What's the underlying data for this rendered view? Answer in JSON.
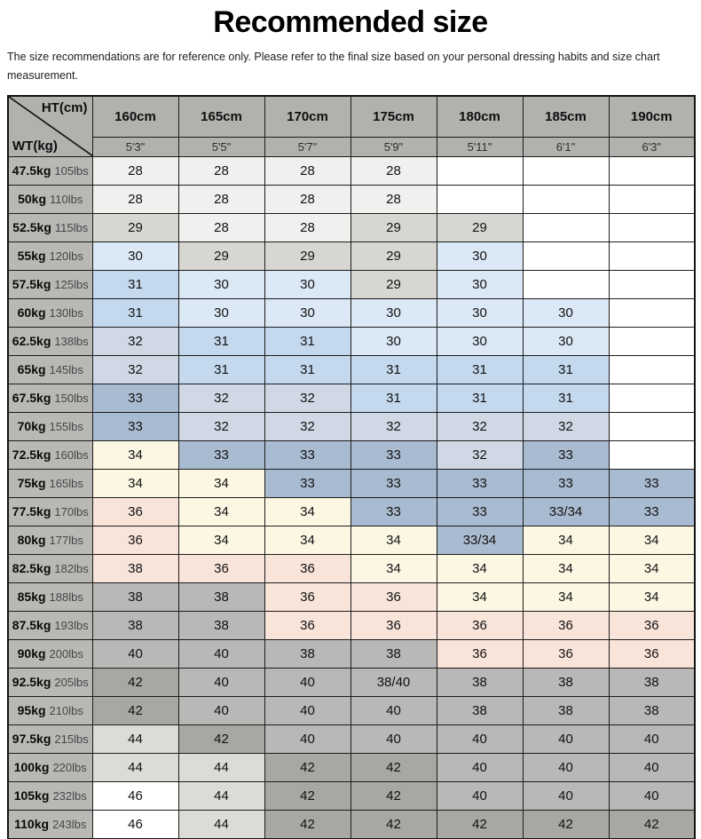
{
  "title": "Recommended size",
  "disclaimer": "The size recommendations are for reference only. Please refer to the final size based on your personal dressing habits and size chart measurement.",
  "corner": {
    "ht": "HT(cm)",
    "wt": "WT(kg)"
  },
  "palette": {
    "w": "#ffffff",
    "s28": "#f1f0ee",
    "s29": "#d7d6d1",
    "s30": "#dbe8f5",
    "s31": "#c4d9ee",
    "s32": "#cfd8e4",
    "s33": "#a9bbd0",
    "s34": "#fcf7e3",
    "s36": "#f9e4da",
    "s38": "#b9b8b6",
    "s42": "#a8a7a4",
    "s44": "#dcdbd8"
  },
  "chart_data": {
    "type": "table",
    "title": "Recommended size",
    "columns_cm": [
      "160cm",
      "165cm",
      "170cm",
      "175cm",
      "180cm",
      "185cm",
      "190cm"
    ],
    "columns_ft": [
      "5'3\"",
      "5'5\"",
      "5'7\"",
      "5'9\"",
      "5'11\"",
      "6'1\"",
      "6'3\""
    ],
    "rows": [
      {
        "kg": "47.5kg",
        "lbs": "105lbs",
        "cells": [
          {
            "v": "28",
            "c": "s28"
          },
          {
            "v": "28",
            "c": "s28"
          },
          {
            "v": "28",
            "c": "s28"
          },
          {
            "v": "28",
            "c": "s28"
          },
          {
            "v": "",
            "c": "w"
          },
          {
            "v": "",
            "c": "w"
          },
          {
            "v": "",
            "c": "w"
          }
        ]
      },
      {
        "kg": "50kg",
        "lbs": "110lbs",
        "cells": [
          {
            "v": "28",
            "c": "s28"
          },
          {
            "v": "28",
            "c": "s28"
          },
          {
            "v": "28",
            "c": "s28"
          },
          {
            "v": "28",
            "c": "s28"
          },
          {
            "v": "",
            "c": "w"
          },
          {
            "v": "",
            "c": "w"
          },
          {
            "v": "",
            "c": "w"
          }
        ]
      },
      {
        "kg": "52.5kg",
        "lbs": "115lbs",
        "cells": [
          {
            "v": "29",
            "c": "s29"
          },
          {
            "v": "28",
            "c": "s28"
          },
          {
            "v": "28",
            "c": "s28"
          },
          {
            "v": "29",
            "c": "s29"
          },
          {
            "v": "29",
            "c": "s29"
          },
          {
            "v": "",
            "c": "w"
          },
          {
            "v": "",
            "c": "w"
          }
        ]
      },
      {
        "kg": "55kg",
        "lbs": "120lbs",
        "cells": [
          {
            "v": "30",
            "c": "s30"
          },
          {
            "v": "29",
            "c": "s29"
          },
          {
            "v": "29",
            "c": "s29"
          },
          {
            "v": "29",
            "c": "s29"
          },
          {
            "v": "30",
            "c": "s30"
          },
          {
            "v": "",
            "c": "w"
          },
          {
            "v": "",
            "c": "w"
          }
        ]
      },
      {
        "kg": "57.5kg",
        "lbs": "125lbs",
        "cells": [
          {
            "v": "31",
            "c": "s31"
          },
          {
            "v": "30",
            "c": "s30"
          },
          {
            "v": "30",
            "c": "s30"
          },
          {
            "v": "29",
            "c": "s29"
          },
          {
            "v": "30",
            "c": "s30"
          },
          {
            "v": "",
            "c": "w"
          },
          {
            "v": "",
            "c": "w"
          }
        ]
      },
      {
        "kg": "60kg",
        "lbs": "130lbs",
        "cells": [
          {
            "v": "31",
            "c": "s31"
          },
          {
            "v": "30",
            "c": "s30"
          },
          {
            "v": "30",
            "c": "s30"
          },
          {
            "v": "30",
            "c": "s30"
          },
          {
            "v": "30",
            "c": "s30"
          },
          {
            "v": "30",
            "c": "s30"
          },
          {
            "v": "",
            "c": "w"
          }
        ]
      },
      {
        "kg": "62.5kg",
        "lbs": "138lbs",
        "cells": [
          {
            "v": "32",
            "c": "s32"
          },
          {
            "v": "31",
            "c": "s31"
          },
          {
            "v": "31",
            "c": "s31"
          },
          {
            "v": "30",
            "c": "s30"
          },
          {
            "v": "30",
            "c": "s30"
          },
          {
            "v": "30",
            "c": "s30"
          },
          {
            "v": "",
            "c": "w"
          }
        ]
      },
      {
        "kg": "65kg",
        "lbs": "145lbs",
        "cells": [
          {
            "v": "32",
            "c": "s32"
          },
          {
            "v": "31",
            "c": "s31"
          },
          {
            "v": "31",
            "c": "s31"
          },
          {
            "v": "31",
            "c": "s31"
          },
          {
            "v": "31",
            "c": "s31"
          },
          {
            "v": "31",
            "c": "s31"
          },
          {
            "v": "",
            "c": "w"
          }
        ]
      },
      {
        "kg": "67.5kg",
        "lbs": "150lbs",
        "cells": [
          {
            "v": "33",
            "c": "s33"
          },
          {
            "v": "32",
            "c": "s32"
          },
          {
            "v": "32",
            "c": "s32"
          },
          {
            "v": "31",
            "c": "s31"
          },
          {
            "v": "31",
            "c": "s31"
          },
          {
            "v": "31",
            "c": "s31"
          },
          {
            "v": "",
            "c": "w"
          }
        ]
      },
      {
        "kg": "70kg",
        "lbs": "155lbs",
        "cells": [
          {
            "v": "33",
            "c": "s33"
          },
          {
            "v": "32",
            "c": "s32"
          },
          {
            "v": "32",
            "c": "s32"
          },
          {
            "v": "32",
            "c": "s32"
          },
          {
            "v": "32",
            "c": "s32"
          },
          {
            "v": "32",
            "c": "s32"
          },
          {
            "v": "",
            "c": "w"
          }
        ]
      },
      {
        "kg": "72.5kg",
        "lbs": "160lbs",
        "cells": [
          {
            "v": "34",
            "c": "s34"
          },
          {
            "v": "33",
            "c": "s33"
          },
          {
            "v": "33",
            "c": "s33"
          },
          {
            "v": "33",
            "c": "s33"
          },
          {
            "v": "32",
            "c": "s32"
          },
          {
            "v": "33",
            "c": "s33"
          },
          {
            "v": "",
            "c": "w"
          }
        ]
      },
      {
        "kg": "75kg",
        "lbs": "165lbs",
        "cells": [
          {
            "v": "34",
            "c": "s34"
          },
          {
            "v": "34",
            "c": "s34"
          },
          {
            "v": "33",
            "c": "s33"
          },
          {
            "v": "33",
            "c": "s33"
          },
          {
            "v": "33",
            "c": "s33"
          },
          {
            "v": "33",
            "c": "s33"
          },
          {
            "v": "33",
            "c": "s33"
          }
        ]
      },
      {
        "kg": "77.5kg",
        "lbs": "170lbs",
        "cells": [
          {
            "v": "36",
            "c": "s36"
          },
          {
            "v": "34",
            "c": "s34"
          },
          {
            "v": "34",
            "c": "s34"
          },
          {
            "v": "33",
            "c": "s33"
          },
          {
            "v": "33",
            "c": "s33"
          },
          {
            "v": "33/34",
            "c": "s33"
          },
          {
            "v": "33",
            "c": "s33"
          }
        ]
      },
      {
        "kg": "80kg",
        "lbs": "177lbs",
        "cells": [
          {
            "v": "36",
            "c": "s36"
          },
          {
            "v": "34",
            "c": "s34"
          },
          {
            "v": "34",
            "c": "s34"
          },
          {
            "v": "34",
            "c": "s34"
          },
          {
            "v": "33/34",
            "c": "s33"
          },
          {
            "v": "34",
            "c": "s34"
          },
          {
            "v": "34",
            "c": "s34"
          }
        ]
      },
      {
        "kg": "82.5kg",
        "lbs": "182lbs",
        "cells": [
          {
            "v": "38",
            "c": "s36"
          },
          {
            "v": "36",
            "c": "s36"
          },
          {
            "v": "36",
            "c": "s36"
          },
          {
            "v": "34",
            "c": "s34"
          },
          {
            "v": "34",
            "c": "s34"
          },
          {
            "v": "34",
            "c": "s34"
          },
          {
            "v": "34",
            "c": "s34"
          }
        ]
      },
      {
        "kg": "85kg",
        "lbs": "188lbs",
        "cells": [
          {
            "v": "38",
            "c": "s38"
          },
          {
            "v": "38",
            "c": "s38"
          },
          {
            "v": "36",
            "c": "s36"
          },
          {
            "v": "36",
            "c": "s36"
          },
          {
            "v": "34",
            "c": "s34"
          },
          {
            "v": "34",
            "c": "s34"
          },
          {
            "v": "34",
            "c": "s34"
          }
        ]
      },
      {
        "kg": "87.5kg",
        "lbs": "193lbs",
        "cells": [
          {
            "v": "38",
            "c": "s38"
          },
          {
            "v": "38",
            "c": "s38"
          },
          {
            "v": "36",
            "c": "s36"
          },
          {
            "v": "36",
            "c": "s36"
          },
          {
            "v": "36",
            "c": "s36"
          },
          {
            "v": "36",
            "c": "s36"
          },
          {
            "v": "36",
            "c": "s36"
          }
        ]
      },
      {
        "kg": "90kg",
        "lbs": "200lbs",
        "cells": [
          {
            "v": "40",
            "c": "s38"
          },
          {
            "v": "40",
            "c": "s38"
          },
          {
            "v": "38",
            "c": "s38"
          },
          {
            "v": "38",
            "c": "s38"
          },
          {
            "v": "36",
            "c": "s36"
          },
          {
            "v": "36",
            "c": "s36"
          },
          {
            "v": "36",
            "c": "s36"
          }
        ]
      },
      {
        "kg": "92.5kg",
        "lbs": "205lbs",
        "cells": [
          {
            "v": "42",
            "c": "s42"
          },
          {
            "v": "40",
            "c": "s38"
          },
          {
            "v": "40",
            "c": "s38"
          },
          {
            "v": "38/40",
            "c": "s38"
          },
          {
            "v": "38",
            "c": "s38"
          },
          {
            "v": "38",
            "c": "s38"
          },
          {
            "v": "38",
            "c": "s38"
          }
        ]
      },
      {
        "kg": "95kg",
        "lbs": "210lbs",
        "cells": [
          {
            "v": "42",
            "c": "s42"
          },
          {
            "v": "40",
            "c": "s38"
          },
          {
            "v": "40",
            "c": "s38"
          },
          {
            "v": "40",
            "c": "s38"
          },
          {
            "v": "38",
            "c": "s38"
          },
          {
            "v": "38",
            "c": "s38"
          },
          {
            "v": "38",
            "c": "s38"
          }
        ]
      },
      {
        "kg": "97.5kg",
        "lbs": "215lbs",
        "cells": [
          {
            "v": "44",
            "c": "s44"
          },
          {
            "v": "42",
            "c": "s42"
          },
          {
            "v": "40",
            "c": "s38"
          },
          {
            "v": "40",
            "c": "s38"
          },
          {
            "v": "40",
            "c": "s38"
          },
          {
            "v": "40",
            "c": "s38"
          },
          {
            "v": "40",
            "c": "s38"
          }
        ]
      },
      {
        "kg": "100kg",
        "lbs": "220lbs",
        "cells": [
          {
            "v": "44",
            "c": "s44"
          },
          {
            "v": "44",
            "c": "s44"
          },
          {
            "v": "42",
            "c": "s42"
          },
          {
            "v": "42",
            "c": "s42"
          },
          {
            "v": "40",
            "c": "s38"
          },
          {
            "v": "40",
            "c": "s38"
          },
          {
            "v": "40",
            "c": "s38"
          }
        ]
      },
      {
        "kg": "105kg",
        "lbs": "232lbs",
        "cells": [
          {
            "v": "46",
            "c": "w"
          },
          {
            "v": "44",
            "c": "s44"
          },
          {
            "v": "42",
            "c": "s42"
          },
          {
            "v": "42",
            "c": "s42"
          },
          {
            "v": "40",
            "c": "s38"
          },
          {
            "v": "40",
            "c": "s38"
          },
          {
            "v": "40",
            "c": "s38"
          }
        ]
      },
      {
        "kg": "110kg",
        "lbs": "243lbs",
        "cells": [
          {
            "v": "46",
            "c": "w"
          },
          {
            "v": "44",
            "c": "s44"
          },
          {
            "v": "42",
            "c": "s42"
          },
          {
            "v": "42",
            "c": "s42"
          },
          {
            "v": "42",
            "c": "s42"
          },
          {
            "v": "42",
            "c": "s42"
          },
          {
            "v": "42",
            "c": "s42"
          }
        ]
      }
    ]
  }
}
